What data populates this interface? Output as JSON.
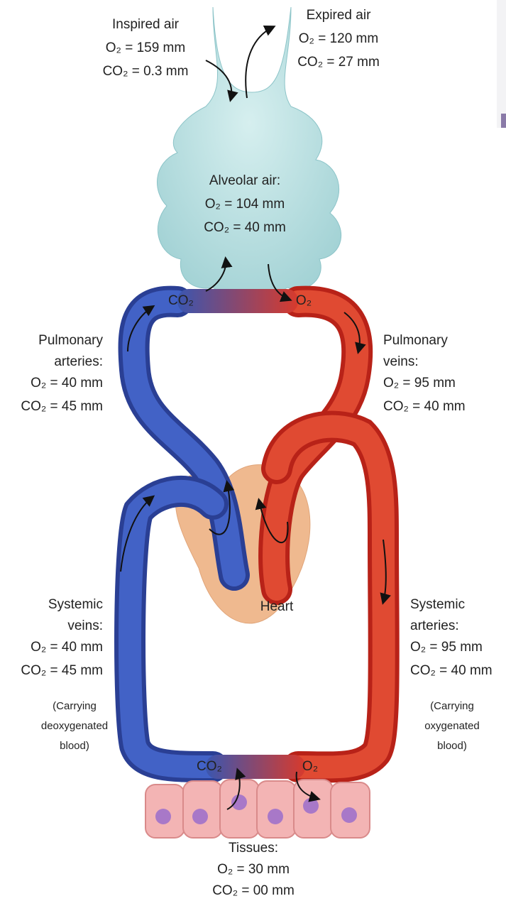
{
  "inspired": {
    "label": "Inspired air",
    "o2": "O₂ = 159 mm",
    "co2": "CO₂ = 0.3 mm"
  },
  "expired": {
    "label": "Expired air",
    "o2": "O₂ = 120 mm",
    "co2": "CO₂ = 27 mm"
  },
  "alveolar": {
    "label": "Alveolar air:",
    "o2": "O₂ = 104 mm",
    "co2": "CO₂ = 40 mm"
  },
  "lung_exchange": {
    "co2": "CO₂",
    "o2": "O₂"
  },
  "pulmonary_arteries": {
    "label": [
      "Pulmonary",
      "arteries:"
    ],
    "o2": "O₂ = 40 mm",
    "co2": "CO₂ = 45 mm"
  },
  "pulmonary_veins": {
    "label": [
      "Pulmonary",
      "veins:"
    ],
    "o2": "O₂ = 95 mm",
    "co2": "CO₂ = 40 mm"
  },
  "heart": {
    "label": "Heart"
  },
  "systemic_veins": {
    "label": [
      "Systemic",
      "veins:"
    ],
    "o2": "O₂ = 40 mm",
    "co2": "CO₂ = 45 mm",
    "note": [
      "(Carrying",
      "deoxygenated",
      "blood)"
    ]
  },
  "systemic_arteries": {
    "label": [
      "Systemic",
      "arteries:"
    ],
    "o2": "O₂ = 95 mm",
    "co2": "CO₂ = 40 mm",
    "note": [
      "(Carrying",
      "oxygenated",
      "blood)"
    ]
  },
  "tissue_exchange": {
    "co2": "CO₂",
    "o2": "O₂"
  },
  "tissues": {
    "label": "Tissues:",
    "o2": "O₂ = 30 mm",
    "co2": "CO₂ = 00 mm"
  }
}
